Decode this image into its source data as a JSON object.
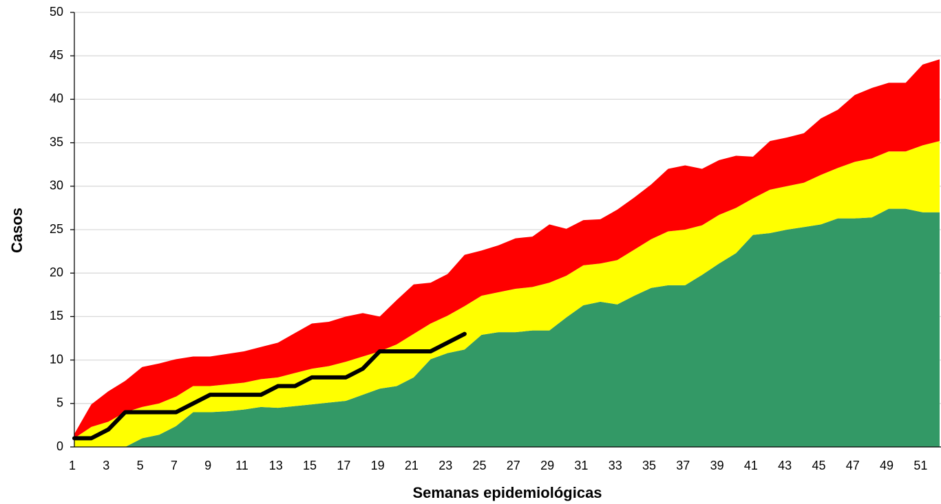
{
  "chart_data": {
    "type": "stacked-area-line",
    "x_label": "Semanas epidemiológicas",
    "y_label": "Casos",
    "categories": [
      "1",
      null,
      "3",
      null,
      "5",
      null,
      "7",
      null,
      "9",
      null,
      "11",
      null,
      "13",
      null,
      "15",
      null,
      "17",
      null,
      "19",
      null,
      "21",
      null,
      "23",
      null,
      "25",
      null,
      "27",
      null,
      "29",
      null,
      "31",
      null,
      "33",
      null,
      "35",
      null,
      "37",
      null,
      "39",
      null,
      "41",
      null,
      "43",
      null,
      "45",
      null,
      "47",
      null,
      "49",
      null,
      "51",
      null
    ],
    "ylim": [
      0,
      50
    ],
    "yticks": [
      0,
      5,
      10,
      15,
      20,
      25,
      30,
      35,
      40,
      45,
      50
    ],
    "grid": true,
    "series": [
      {
        "color": "#339966",
        "kind": "area",
        "values": [
          0,
          0,
          0,
          0,
          1,
          1.4,
          2.4,
          4,
          4,
          4.1,
          4.3,
          4.6,
          4.5,
          4.7,
          4.9,
          5.1,
          5.3,
          6,
          6.7,
          7,
          8,
          10.1,
          10.8,
          11.2,
          12.9,
          13.2,
          13.2,
          13.4,
          13.4,
          14.9,
          16.3,
          16.7,
          16.4,
          17.4,
          18.3,
          18.6,
          18.6,
          19.8,
          21.1,
          22.3,
          24.4,
          24.6,
          25,
          25.3,
          25.6,
          26.3,
          26.3,
          26.4,
          27.4,
          27.4,
          27,
          27
        ]
      },
      {
        "color": "#ffff00",
        "kind": "area",
        "values": [
          1,
          2.3,
          2.9,
          4,
          3.6,
          3.6,
          3.4,
          3,
          3,
          3.1,
          3.1,
          3.2,
          3.5,
          3.8,
          4.1,
          4.2,
          4.5,
          4.4,
          4.3,
          4.8,
          5,
          4.1,
          4.3,
          5,
          4.5,
          4.6,
          5,
          5,
          5.5,
          4.8,
          4.6,
          4.4,
          5.1,
          5.3,
          5.6,
          6.2,
          6.4,
          5.7,
          5.6,
          5.2,
          4.2,
          5,
          5,
          5.1,
          5.7,
          5.8,
          6.5,
          6.8,
          6.6,
          6.6,
          7.7,
          8.2
        ]
      },
      {
        "color": "#ff0000",
        "kind": "area",
        "values": [
          0.5,
          2.6,
          3.5,
          3.6,
          4.6,
          4.6,
          4.3,
          3.4,
          3.4,
          3.5,
          3.6,
          3.7,
          4,
          4.6,
          5.2,
          5.1,
          5.2,
          5,
          4,
          5.1,
          5.7,
          4.7,
          4.8,
          5.9,
          5.2,
          5.4,
          5.8,
          5.8,
          6.7,
          5.4,
          5.2,
          5.1,
          5.8,
          6,
          6.3,
          7.2,
          7.4,
          6.5,
          6.3,
          6,
          4.8,
          5.6,
          5.6,
          5.7,
          6.5,
          6.7,
          7.7,
          8.1,
          7.9,
          7.9,
          9.3,
          9.4
        ]
      },
      {
        "color": "#000000",
        "kind": "line",
        "values": [
          1,
          1,
          2,
          4,
          4,
          4,
          4,
          5,
          6,
          6,
          6,
          6,
          7,
          7,
          8,
          8,
          8,
          9,
          11,
          11,
          11,
          11,
          12,
          13,
          null,
          null,
          null,
          null,
          null,
          null,
          null,
          null,
          null,
          null,
          null,
          null,
          null,
          null,
          null,
          null,
          null,
          null,
          null,
          null,
          null,
          null,
          null,
          null,
          null,
          null,
          null,
          null
        ]
      }
    ]
  }
}
